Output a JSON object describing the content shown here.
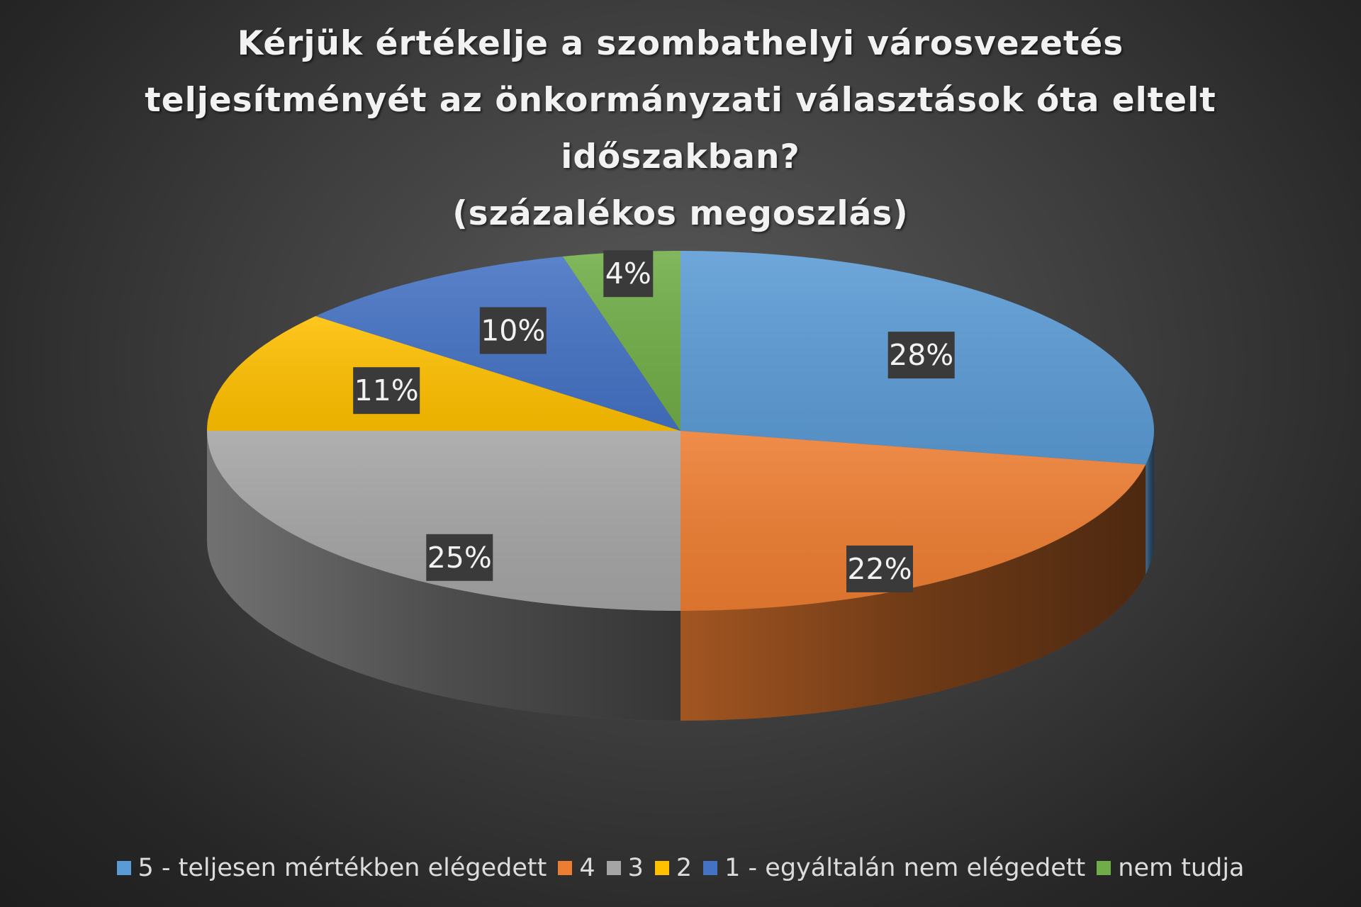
{
  "chart_data": {
    "type": "pie",
    "title": [
      "Kérjük értékelje a szombathelyi városvezetés",
      "teljesítményét az önkormányzati választások óta eltelt",
      "időszakban?",
      "(százalékos megoszlás)"
    ],
    "slices": [
      {
        "name": "5 - teljesen mértékben elégedett",
        "value": 28,
        "label": "28%",
        "color": "#5b9bd5"
      },
      {
        "name": "4",
        "value": 22,
        "label": "22%",
        "color": "#ed7d31"
      },
      {
        "name": "3",
        "value": 25,
        "label": "25%",
        "color": "#a5a5a5"
      },
      {
        "name": "2",
        "value": 11,
        "label": "11%",
        "color": "#ffc000"
      },
      {
        "name": "1 - egyáltalán nem elégedett",
        "value": 10,
        "label": "10%",
        "color": "#4472c4"
      },
      {
        "name": "nem tudja",
        "value": 4,
        "label": "4%",
        "color": "#70ad47"
      }
    ],
    "legend_position": "bottom",
    "style": "3d-pie"
  }
}
